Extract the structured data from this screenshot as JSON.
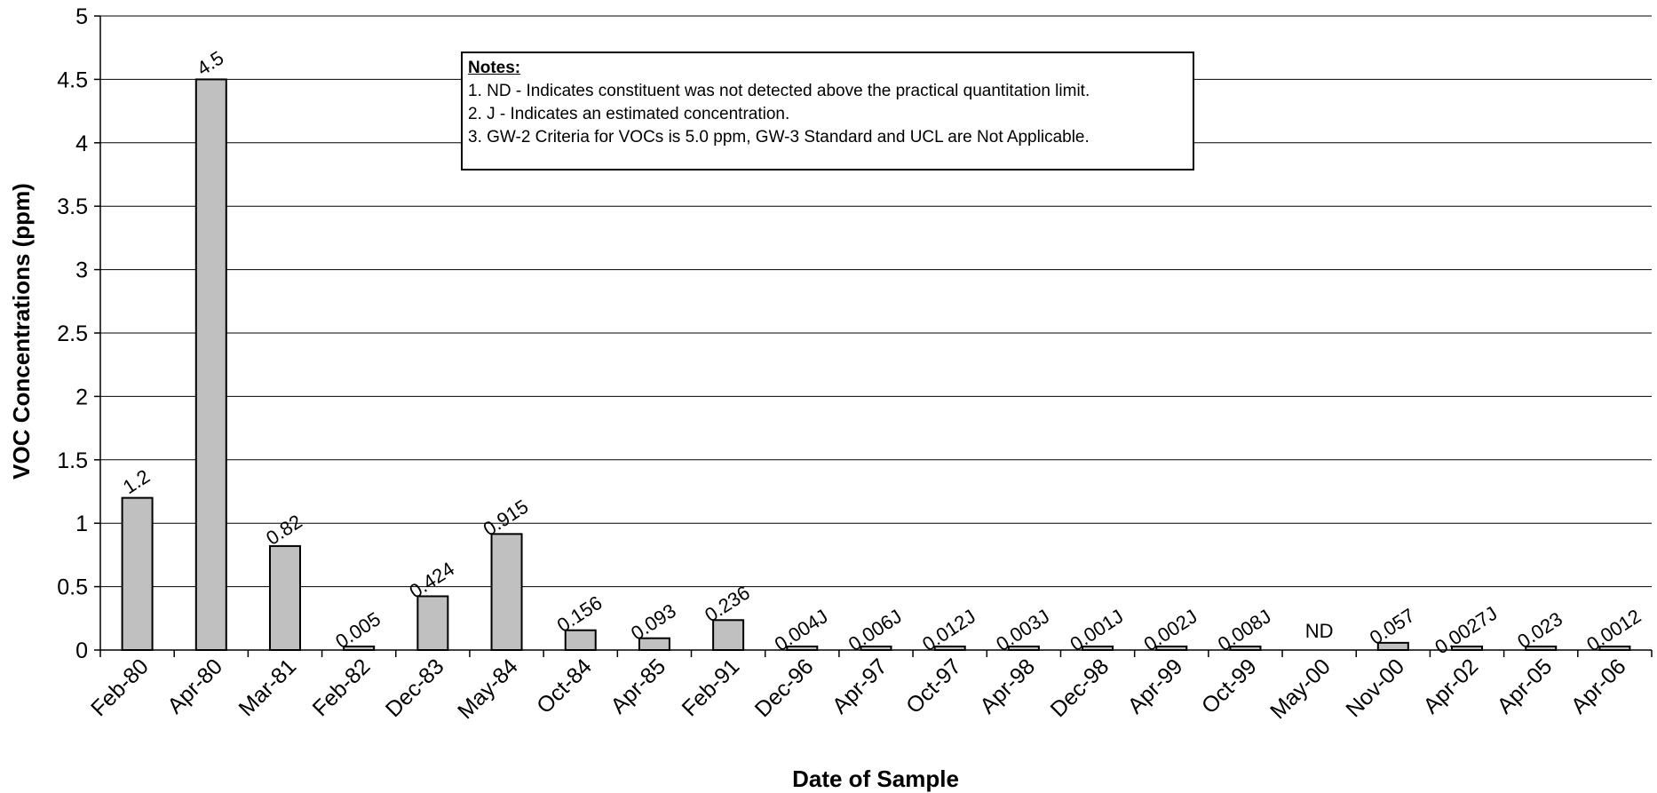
{
  "chart_data": {
    "type": "bar",
    "xlabel": "Date of Sample",
    "ylabel": "VOC Concentrations (ppm)",
    "ylim": [
      0,
      5
    ],
    "yticks": [
      0,
      0.5,
      1,
      1.5,
      2,
      2.5,
      3,
      3.5,
      4,
      4.5,
      5
    ],
    "ytick_labels": [
      "0",
      "0.5",
      "1",
      "1.5",
      "2",
      "2.5",
      "3",
      "3.5",
      "4",
      "4.5",
      "5"
    ],
    "grid": true,
    "bar_color": "#c0c0c0",
    "categories": [
      "Feb-80",
      "Apr-80",
      "Mar-81",
      "Feb-82",
      "Dec-83",
      "May-84",
      "Oct-84",
      "Apr-85",
      "Feb-91",
      "Dec-96",
      "Apr-97",
      "Oct-97",
      "Apr-98",
      "Dec-98",
      "Apr-99",
      "Oct-99",
      "May-00",
      "Nov-00",
      "Apr-02",
      "Apr-05",
      "Apr-06"
    ],
    "values": [
      1.2,
      4.5,
      0.82,
      0.005,
      0.424,
      0.915,
      0.156,
      0.093,
      0.236,
      0.004,
      0.006,
      0.012,
      0.003,
      0.001,
      0.002,
      0.008,
      0,
      0.057,
      0.0027,
      0.023,
      0.0012
    ],
    "data_labels": [
      "1.2",
      "4.5",
      "0.82",
      "0.005",
      "0.424",
      "0.915",
      "0.156",
      "0.093",
      "0.236",
      "0.004J",
      "0.006J",
      "0.012J",
      "0.003J",
      "0.001J",
      "0.002J",
      "0.008J",
      "ND",
      "0.057",
      "0.0027J",
      "0.023",
      "0.0012"
    ]
  },
  "notes": {
    "title": "Notes:",
    "items": [
      "1.  ND - Indicates constituent was not detected above the practical quantitation limit.",
      "2.  J - Indicates an estimated concentration.",
      "3. GW-2 Criteria for VOCs is 5.0 ppm, GW-3 Standard and UCL are Not Applicable."
    ]
  }
}
